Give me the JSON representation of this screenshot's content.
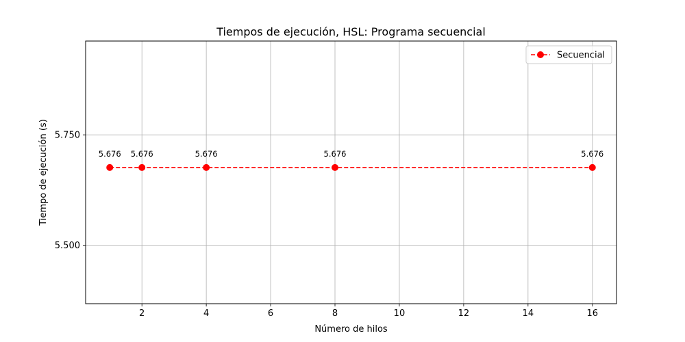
{
  "chart_data": {
    "type": "line",
    "title": "Tiempos de ejecución, HSL: Programa secuencial",
    "xlabel": "Número de hilos",
    "ylabel": "Tiempo de ejecución (s)",
    "x": [
      1,
      2,
      4,
      8,
      16
    ],
    "series": [
      {
        "name": "Secuencial",
        "values": [
          5.676,
          5.676,
          5.676,
          5.676,
          5.676
        ],
        "labels": [
          "5.676",
          "5.676",
          "5.676",
          "5.676",
          "5.676"
        ],
        "color": "#ff0000",
        "line_style": "dashed",
        "marker": "circle"
      }
    ],
    "xlim": [
      0.25,
      16.75
    ],
    "ylim": [
      5.3676,
      5.9624
    ],
    "xticks": [
      2,
      4,
      6,
      8,
      10,
      12,
      14,
      16
    ],
    "xtick_labels": [
      "2",
      "4",
      "6",
      "8",
      "10",
      "12",
      "14",
      "16"
    ],
    "yticks": [
      5.5,
      5.75
    ],
    "ytick_labels": [
      "5.500",
      "5.750"
    ],
    "grid": true,
    "legend_position": "top-right"
  }
}
